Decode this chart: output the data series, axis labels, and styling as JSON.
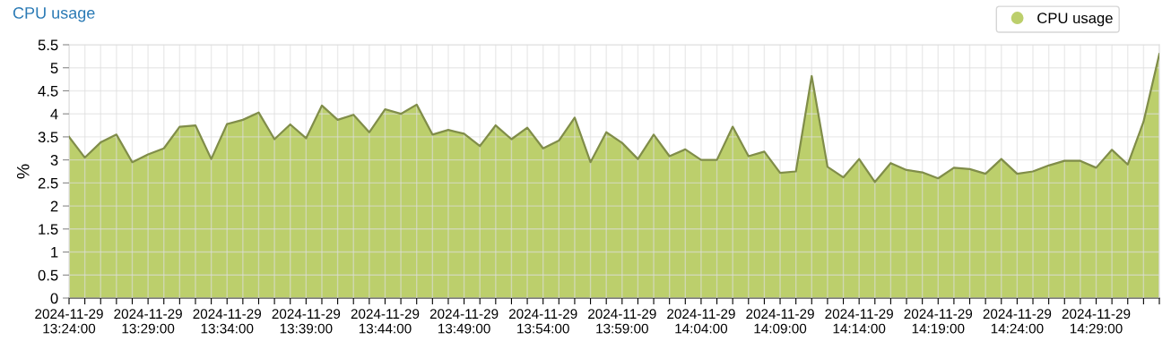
{
  "chart_data": {
    "type": "area",
    "title": "CPU usage",
    "ylabel": "%",
    "x": [
      "2024-11-29T13:24",
      "2024-11-29T13:25",
      "2024-11-29T13:26",
      "2024-11-29T13:27",
      "2024-11-29T13:28",
      "2024-11-29T13:29",
      "2024-11-29T13:30",
      "2024-11-29T13:31",
      "2024-11-29T13:32",
      "2024-11-29T13:33",
      "2024-11-29T13:34",
      "2024-11-29T13:35",
      "2024-11-29T13:36",
      "2024-11-29T13:37",
      "2024-11-29T13:38",
      "2024-11-29T13:39",
      "2024-11-29T13:40",
      "2024-11-29T13:41",
      "2024-11-29T13:42",
      "2024-11-29T13:43",
      "2024-11-29T13:44",
      "2024-11-29T13:45",
      "2024-11-29T13:46",
      "2024-11-29T13:47",
      "2024-11-29T13:48",
      "2024-11-29T13:49",
      "2024-11-29T13:50",
      "2024-11-29T13:51",
      "2024-11-29T13:52",
      "2024-11-29T13:53",
      "2024-11-29T13:54",
      "2024-11-29T13:55",
      "2024-11-29T13:56",
      "2024-11-29T13:57",
      "2024-11-29T13:58",
      "2024-11-29T13:59",
      "2024-11-29T14:00",
      "2024-11-29T14:01",
      "2024-11-29T14:02",
      "2024-11-29T14:03",
      "2024-11-29T14:04",
      "2024-11-29T14:05",
      "2024-11-29T14:06",
      "2024-11-29T14:07",
      "2024-11-29T14:08",
      "2024-11-29T14:09",
      "2024-11-29T14:10",
      "2024-11-29T14:11",
      "2024-11-29T14:12",
      "2024-11-29T14:13",
      "2024-11-29T14:14",
      "2024-11-29T14:15",
      "2024-11-29T14:16",
      "2024-11-29T14:17",
      "2024-11-29T14:18",
      "2024-11-29T14:19",
      "2024-11-29T14:20",
      "2024-11-29T14:21",
      "2024-11-29T14:22",
      "2024-11-29T14:23",
      "2024-11-29T14:24",
      "2024-11-29T14:25",
      "2024-11-29T14:26",
      "2024-11-29T14:27",
      "2024-11-29T14:28",
      "2024-11-29T14:29",
      "2024-11-29T14:30",
      "2024-11-29T14:31",
      "2024-11-29T14:32",
      "2024-11-29T14:33"
    ],
    "series": [
      {
        "name": "CPU usage",
        "color": "#bccf6c",
        "values": [
          3.5,
          3.05,
          3.38,
          3.55,
          2.95,
          3.12,
          3.25,
          3.72,
          3.75,
          3.02,
          3.78,
          3.87,
          4.03,
          3.45,
          3.77,
          3.47,
          4.18,
          3.87,
          3.98,
          3.6,
          4.1,
          4.0,
          4.2,
          3.55,
          3.65,
          3.57,
          3.3,
          3.75,
          3.45,
          3.7,
          3.25,
          3.42,
          3.92,
          2.95,
          3.6,
          3.37,
          3.02,
          3.55,
          3.08,
          3.23,
          3.0,
          3.0,
          3.72,
          3.08,
          3.18,
          2.72,
          2.75,
          4.82,
          2.85,
          2.62,
          3.02,
          2.52,
          2.93,
          2.78,
          2.73,
          2.6,
          2.83,
          2.8,
          2.7,
          3.02,
          2.7,
          2.75,
          2.88,
          2.98,
          2.98,
          2.83,
          3.22,
          2.9,
          3.83,
          5.3
        ]
      }
    ],
    "xlim": [
      "2024-11-29T13:24",
      "2024-11-29T14:33"
    ],
    "xticks": [
      {
        "value": "2024-11-29T13:24",
        "label": "2024-11-29\n13:24:00"
      },
      {
        "value": "2024-11-29T13:25",
        "label": null
      },
      {
        "value": "2024-11-29T13:26",
        "label": null
      },
      {
        "value": "2024-11-29T13:27",
        "label": null
      },
      {
        "value": "2024-11-29T13:28",
        "label": null
      },
      {
        "value": "2024-11-29T13:29",
        "label": "2024-11-29\n13:29:00"
      },
      {
        "value": "2024-11-29T13:30",
        "label": null
      },
      {
        "value": "2024-11-29T13:31",
        "label": null
      },
      {
        "value": "2024-11-29T13:32",
        "label": null
      },
      {
        "value": "2024-11-29T13:33",
        "label": null
      },
      {
        "value": "2024-11-29T13:34",
        "label": "2024-11-29\n13:34:00"
      },
      {
        "value": "2024-11-29T13:35",
        "label": null
      },
      {
        "value": "2024-11-29T13:36",
        "label": null
      },
      {
        "value": "2024-11-29T13:37",
        "label": null
      },
      {
        "value": "2024-11-29T13:38",
        "label": null
      },
      {
        "value": "2024-11-29T13:39",
        "label": "2024-11-29\n13:39:00"
      },
      {
        "value": "2024-11-29T13:40",
        "label": null
      },
      {
        "value": "2024-11-29T13:41",
        "label": null
      },
      {
        "value": "2024-11-29T13:42",
        "label": null
      },
      {
        "value": "2024-11-29T13:43",
        "label": null
      },
      {
        "value": "2024-11-29T13:44",
        "label": "2024-11-29\n13:44:00"
      },
      {
        "value": "2024-11-29T13:45",
        "label": null
      },
      {
        "value": "2024-11-29T13:46",
        "label": null
      },
      {
        "value": "2024-11-29T13:47",
        "label": null
      },
      {
        "value": "2024-11-29T13:48",
        "label": null
      },
      {
        "value": "2024-11-29T13:49",
        "label": "2024-11-29\n13:49:00"
      },
      {
        "value": "2024-11-29T13:50",
        "label": null
      },
      {
        "value": "2024-11-29T13:51",
        "label": null
      },
      {
        "value": "2024-11-29T13:52",
        "label": null
      },
      {
        "value": "2024-11-29T13:53",
        "label": null
      },
      {
        "value": "2024-11-29T13:54",
        "label": "2024-11-29\n13:54:00"
      },
      {
        "value": "2024-11-29T13:55",
        "label": null
      },
      {
        "value": "2024-11-29T13:56",
        "label": null
      },
      {
        "value": "2024-11-29T13:57",
        "label": null
      },
      {
        "value": "2024-11-29T13:58",
        "label": null
      },
      {
        "value": "2024-11-29T13:59",
        "label": "2024-11-29\n13:59:00"
      },
      {
        "value": "2024-11-29T14:00",
        "label": null
      },
      {
        "value": "2024-11-29T14:01",
        "label": null
      },
      {
        "value": "2024-11-29T14:02",
        "label": null
      },
      {
        "value": "2024-11-29T14:03",
        "label": null
      },
      {
        "value": "2024-11-29T14:04",
        "label": "2024-11-29\n14:04:00"
      },
      {
        "value": "2024-11-29T14:05",
        "label": null
      },
      {
        "value": "2024-11-29T14:06",
        "label": null
      },
      {
        "value": "2024-11-29T14:07",
        "label": null
      },
      {
        "value": "2024-11-29T14:08",
        "label": null
      },
      {
        "value": "2024-11-29T14:09",
        "label": "2024-11-29\n14:09:00"
      },
      {
        "value": "2024-11-29T14:10",
        "label": null
      },
      {
        "value": "2024-11-29T14:11",
        "label": null
      },
      {
        "value": "2024-11-29T14:12",
        "label": null
      },
      {
        "value": "2024-11-29T14:13",
        "label": null
      },
      {
        "value": "2024-11-29T14:14",
        "label": "2024-11-29\n14:14:00"
      },
      {
        "value": "2024-11-29T14:15",
        "label": null
      },
      {
        "value": "2024-11-29T14:16",
        "label": null
      },
      {
        "value": "2024-11-29T14:17",
        "label": null
      },
      {
        "value": "2024-11-29T14:18",
        "label": null
      },
      {
        "value": "2024-11-29T14:19",
        "label": "2024-11-29\n14:19:00"
      },
      {
        "value": "2024-11-29T14:20",
        "label": null
      },
      {
        "value": "2024-11-29T14:21",
        "label": null
      },
      {
        "value": "2024-11-29T14:22",
        "label": null
      },
      {
        "value": "2024-11-29T14:23",
        "label": null
      },
      {
        "value": "2024-11-29T14:24",
        "label": "2024-11-29\n14:24:00"
      },
      {
        "value": "2024-11-29T14:25",
        "label": null
      },
      {
        "value": "2024-11-29T14:26",
        "label": null
      },
      {
        "value": "2024-11-29T14:27",
        "label": null
      },
      {
        "value": "2024-11-29T14:28",
        "label": null
      },
      {
        "value": "2024-11-29T14:29",
        "label": "2024-11-29\n14:29:00"
      },
      {
        "value": "2024-11-29T14:30",
        "label": null
      },
      {
        "value": "2024-11-29T14:31",
        "label": null
      },
      {
        "value": "2024-11-29T14:32",
        "label": null
      },
      {
        "value": "2024-11-29T14:33",
        "label": null
      }
    ],
    "ylim": [
      0,
      5.5
    ],
    "yticks": [
      0,
      0.5,
      1,
      1.5,
      2,
      2.5,
      3,
      3.5,
      4,
      4.5,
      5,
      5.5
    ],
    "grid": true,
    "legend": "top right"
  }
}
